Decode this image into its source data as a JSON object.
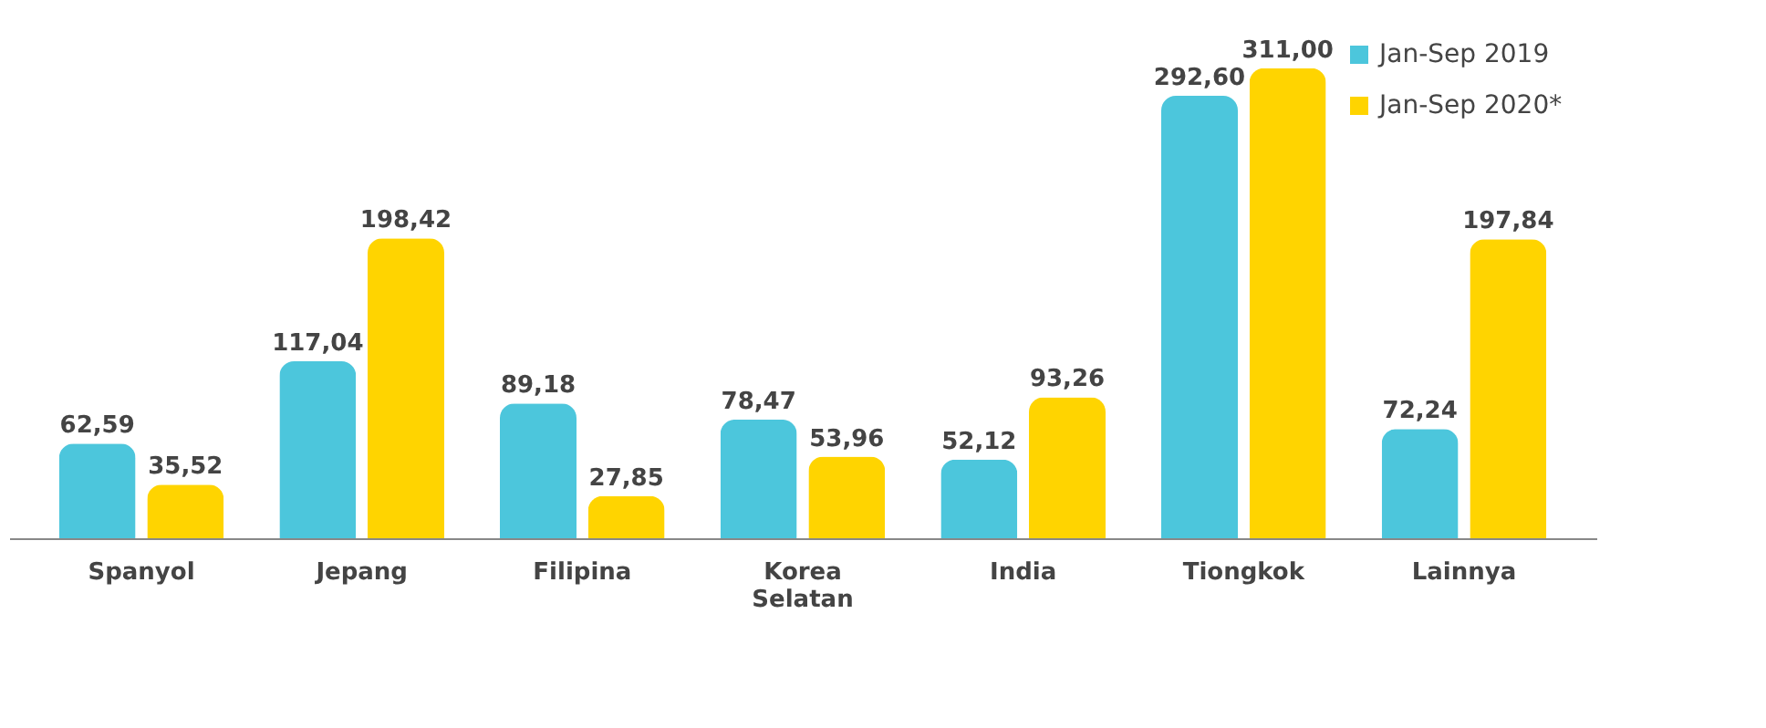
{
  "chart_data": {
    "type": "bar",
    "categories": [
      "Spanyol",
      "Jepang",
      "Filipina",
      "Korea Selatan",
      "India",
      "Tiongkok",
      "Lainnya"
    ],
    "series": [
      {
        "name": "Jan-Sep 2019",
        "color": "#4cc6dc",
        "values": [
          62.59,
          117.04,
          89.18,
          78.47,
          52.12,
          292.6,
          72.24
        ],
        "value_labels": [
          "62,59",
          "117,04",
          "89,18",
          "78,47",
          "52,12",
          "292,60",
          "72,24"
        ]
      },
      {
        "name": "Jan-Sep 2020*",
        "color": "#ffd400",
        "values": [
          35.52,
          198.42,
          27.85,
          53.96,
          93.26,
          311.0,
          197.84
        ],
        "value_labels": [
          "35,52",
          "198,42",
          "27,85",
          "53,96",
          "93,26",
          "311,00",
          "197,84"
        ]
      }
    ],
    "legend": "top right",
    "grid": false,
    "tick_labels": "x"
  }
}
